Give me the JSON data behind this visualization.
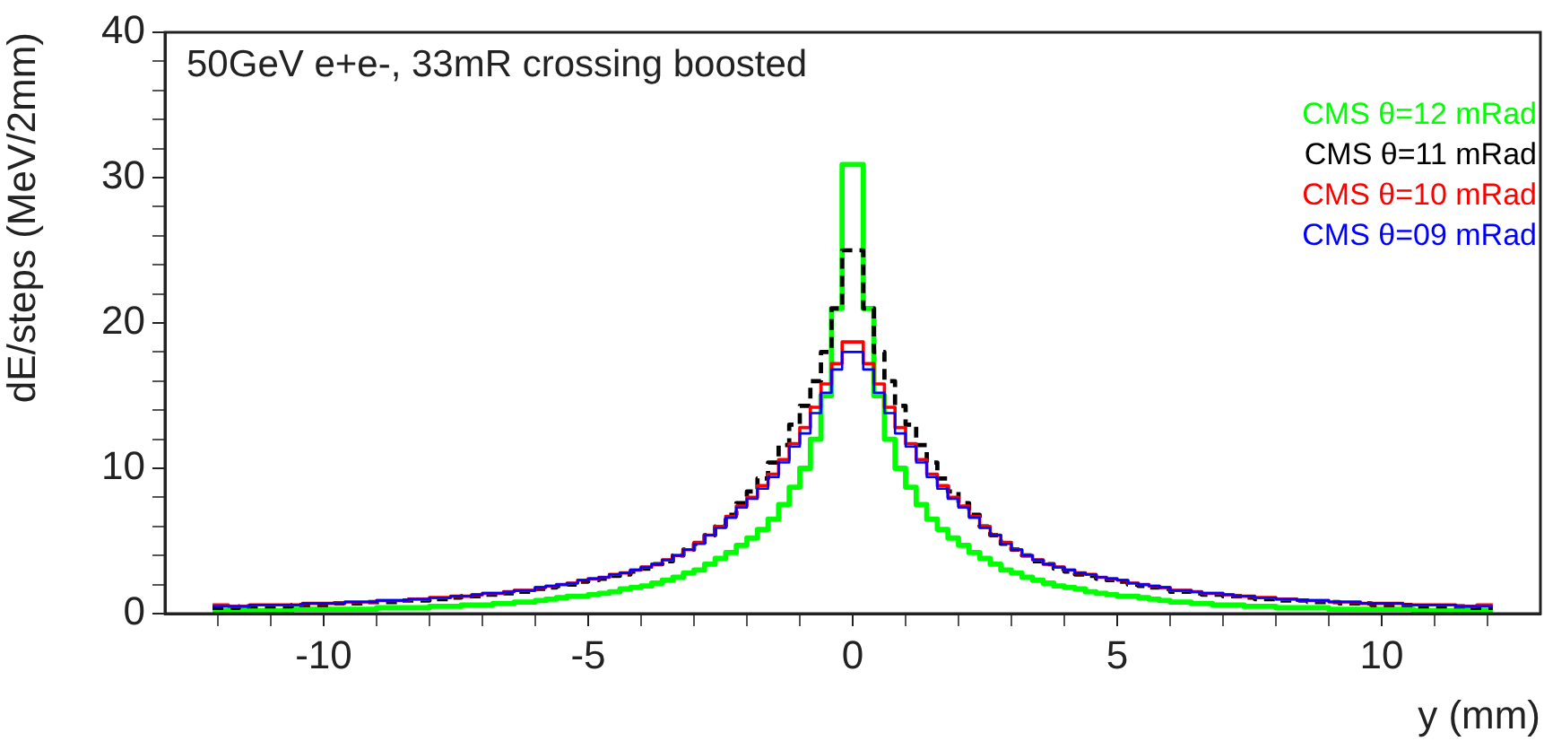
{
  "chart_data": {
    "type": "step",
    "title": "50GeV e+e-, 33mR crossing boosted",
    "xlabel": "y (mm)",
    "ylabel": "dE/steps (MeV/2mm)",
    "legend": "top right",
    "xlim": [
      -13,
      13
    ],
    "ylim": [
      0,
      40
    ],
    "xticks": [
      {
        "value": -12,
        "label": null
      },
      {
        "value": -11,
        "label": null
      },
      -10,
      {
        "value": -9,
        "label": null
      },
      {
        "value": -8,
        "label": null
      },
      {
        "value": -7,
        "label": null
      },
      {
        "value": -6,
        "label": null
      },
      -5,
      {
        "value": -4,
        "label": null
      },
      {
        "value": -3,
        "label": null
      },
      {
        "value": -2,
        "label": null
      },
      {
        "value": -1,
        "label": null
      },
      0,
      {
        "value": 1,
        "label": null
      },
      {
        "value": 2,
        "label": null
      },
      {
        "value": 3,
        "label": null
      },
      {
        "value": 4,
        "label": null
      },
      5,
      {
        "value": 6,
        "label": null
      },
      {
        "value": 7,
        "label": null
      },
      {
        "value": 8,
        "label": null
      },
      {
        "value": 9,
        "label": null
      },
      10,
      {
        "value": 11,
        "label": null
      },
      {
        "value": 12,
        "label": null
      }
    ],
    "yticks": [
      0,
      {
        "value": 2,
        "label": null
      },
      {
        "value": 4,
        "label": null
      },
      {
        "value": 6,
        "label": null
      },
      {
        "value": 8,
        "label": null
      },
      10,
      {
        "value": 12,
        "label": null
      },
      {
        "value": 14,
        "label": null
      },
      {
        "value": 16,
        "label": null
      },
      {
        "value": 18,
        "label": null
      },
      20,
      {
        "value": 22,
        "label": null
      },
      {
        "value": 24,
        "label": null
      },
      {
        "value": 26,
        "label": null
      },
      {
        "value": 28,
        "label": null
      },
      30,
      {
        "value": 32,
        "label": null
      },
      {
        "value": 34,
        "label": null
      },
      {
        "value": 36,
        "label": null
      },
      {
        "value": 38,
        "label": null
      },
      40
    ],
    "x": [
      -12.1,
      -11.9,
      -11.7,
      -11.5,
      -11.3,
      -11.1,
      -10.9,
      -10.7,
      -10.5,
      -10.3,
      -10.1,
      -9.9,
      -9.7,
      -9.5,
      -9.3,
      -9.1,
      -8.9,
      -8.7,
      -8.5,
      -8.3,
      -8.1,
      -7.9,
      -7.7,
      -7.5,
      -7.3,
      -7.1,
      -6.9,
      -6.7,
      -6.5,
      -6.3,
      -6.1,
      -5.9,
      -5.7,
      -5.5,
      -5.3,
      -5.1,
      -4.9,
      -4.7,
      -4.5,
      -4.3,
      -4.1,
      -3.9,
      -3.7,
      -3.5,
      -3.3,
      -3.1,
      -2.9,
      -2.7,
      -2.5,
      -2.3,
      -2.1,
      -1.9,
      -1.7,
      -1.5,
      -1.3,
      -1.1,
      -0.9,
      -0.7,
      -0.5,
      -0.3,
      -0.1,
      0.1,
      0.3,
      0.5,
      0.7,
      0.9,
      1.1,
      1.3,
      1.5,
      1.7,
      1.9,
      2.1,
      2.3,
      2.5,
      2.7,
      2.9,
      3.1,
      3.3,
      3.5,
      3.7,
      3.9,
      4.1,
      4.3,
      4.5,
      4.7,
      4.9,
      5.1,
      5.3,
      5.5,
      5.7,
      5.9,
      6.1,
      6.3,
      6.5,
      6.7,
      6.9,
      7.1,
      7.3,
      7.5,
      7.7,
      7.9,
      8.1,
      8.3,
      8.5,
      8.7,
      8.9,
      9.1,
      9.3,
      9.5,
      9.7,
      9.9,
      10.1,
      10.3,
      10.5,
      10.7,
      10.9,
      11.1,
      11.3,
      11.5,
      11.7,
      11.9,
      12.1
    ],
    "series": [
      {
        "name": "CMS θ=12 mRad",
        "color": "#00ff00",
        "values": [
          0.2,
          0.2,
          0.2,
          0.2,
          0.2,
          0.2,
          0.2,
          0.2,
          0.3,
          0.3,
          0.3,
          0.3,
          0.3,
          0.3,
          0.3,
          0.3,
          0.4,
          0.4,
          0.4,
          0.4,
          0.4,
          0.5,
          0.5,
          0.5,
          0.6,
          0.6,
          0.6,
          0.7,
          0.7,
          0.8,
          0.8,
          0.9,
          1.0,
          1.1,
          1.2,
          1.2,
          1.3,
          1.4,
          1.5,
          1.7,
          1.8,
          1.9,
          2.1,
          2.3,
          2.5,
          2.8,
          3.0,
          3.4,
          3.8,
          4.2,
          4.7,
          5.2,
          5.8,
          6.5,
          7.5,
          8.7,
          10.0,
          12.0,
          15.0,
          21.0,
          30.9,
          30.9,
          21.0,
          15.0,
          12.0,
          10.0,
          8.7,
          7.5,
          6.5,
          5.8,
          5.2,
          4.7,
          4.2,
          3.8,
          3.4,
          3.0,
          2.8,
          2.5,
          2.3,
          2.1,
          1.9,
          1.8,
          1.7,
          1.5,
          1.4,
          1.3,
          1.2,
          1.2,
          1.1,
          1.0,
          0.9,
          0.8,
          0.8,
          0.7,
          0.7,
          0.6,
          0.6,
          0.6,
          0.5,
          0.5,
          0.5,
          0.4,
          0.4,
          0.4,
          0.4,
          0.4,
          0.3,
          0.3,
          0.3,
          0.3,
          0.3,
          0.3,
          0.3,
          0.3,
          0.2,
          0.2,
          0.2,
          0.2,
          0.2,
          0.2,
          0.2,
          0.2
        ]
      },
      {
        "name": "CMS θ=11 mRad",
        "color": "#000000",
        "line_style": "dashed",
        "values": [
          0.4,
          0.4,
          0.4,
          0.5,
          0.5,
          0.5,
          0.5,
          0.5,
          0.6,
          0.6,
          0.6,
          0.6,
          0.7,
          0.7,
          0.7,
          0.8,
          0.8,
          0.8,
          0.9,
          0.9,
          0.9,
          1.0,
          1.0,
          1.1,
          1.2,
          1.2,
          1.3,
          1.3,
          1.4,
          1.5,
          1.5,
          1.7,
          1.8,
          1.9,
          2.0,
          2.2,
          2.3,
          2.4,
          2.6,
          2.7,
          2.9,
          3.1,
          3.4,
          3.6,
          4.0,
          4.4,
          4.8,
          5.4,
          6.0,
          6.8,
          7.6,
          8.4,
          9.3,
          10.4,
          11.6,
          13.0,
          14.3,
          16.0,
          18.0,
          21.0,
          25.0,
          25.0,
          21.0,
          18.0,
          16.0,
          14.3,
          13.0,
          11.6,
          10.4,
          9.3,
          8.4,
          7.6,
          6.8,
          6.0,
          5.4,
          4.8,
          4.4,
          4.0,
          3.6,
          3.4,
          3.1,
          2.9,
          2.7,
          2.6,
          2.4,
          2.3,
          2.2,
          2.0,
          1.9,
          1.8,
          1.7,
          1.5,
          1.5,
          1.4,
          1.3,
          1.3,
          1.2,
          1.2,
          1.1,
          1.0,
          1.0,
          0.9,
          0.9,
          0.9,
          0.8,
          0.8,
          0.8,
          0.7,
          0.7,
          0.7,
          0.6,
          0.6,
          0.6,
          0.6,
          0.5,
          0.5,
          0.5,
          0.5,
          0.5,
          0.4,
          0.4,
          0.4
        ]
      },
      {
        "name": "CMS θ=10 mRad",
        "color": "#ff0000",
        "values": [
          0.6,
          0.6,
          0.5,
          0.5,
          0.6,
          0.6,
          0.6,
          0.6,
          0.6,
          0.7,
          0.7,
          0.7,
          0.7,
          0.8,
          0.8,
          0.8,
          0.9,
          0.9,
          0.9,
          1.0,
          1.0,
          1.1,
          1.1,
          1.2,
          1.2,
          1.3,
          1.4,
          1.4,
          1.5,
          1.6,
          1.6,
          1.8,
          1.9,
          2.0,
          2.1,
          2.3,
          2.4,
          2.5,
          2.7,
          2.8,
          3.0,
          3.2,
          3.4,
          3.7,
          4.0,
          4.4,
          4.9,
          5.4,
          6.0,
          6.7,
          7.4,
          8.0,
          8.8,
          9.6,
          10.6,
          11.7,
          12.8,
          14.2,
          15.8,
          17.2,
          18.7,
          18.7,
          17.2,
          15.8,
          14.2,
          12.8,
          11.7,
          10.6,
          9.6,
          8.8,
          8.0,
          7.4,
          6.7,
          6.0,
          5.4,
          4.9,
          4.4,
          4.0,
          3.7,
          3.4,
          3.2,
          3.0,
          2.8,
          2.7,
          2.5,
          2.4,
          2.3,
          2.1,
          2.0,
          1.9,
          1.8,
          1.6,
          1.6,
          1.5,
          1.4,
          1.4,
          1.3,
          1.2,
          1.2,
          1.1,
          1.1,
          1.0,
          1.0,
          0.9,
          0.9,
          0.9,
          0.8,
          0.8,
          0.8,
          0.7,
          0.7,
          0.7,
          0.7,
          0.6,
          0.6,
          0.6,
          0.6,
          0.6,
          0.5,
          0.5,
          0.6,
          0.6
        ]
      },
      {
        "name": "CMS θ=09 mRad",
        "color": "#0000ff",
        "values": [
          0.5,
          0.5,
          0.5,
          0.5,
          0.6,
          0.6,
          0.6,
          0.6,
          0.6,
          0.7,
          0.7,
          0.7,
          0.7,
          0.8,
          0.8,
          0.8,
          0.9,
          0.9,
          0.9,
          1.0,
          1.0,
          1.1,
          1.1,
          1.2,
          1.2,
          1.3,
          1.4,
          1.4,
          1.5,
          1.6,
          1.6,
          1.8,
          1.9,
          2.0,
          2.1,
          2.3,
          2.4,
          2.5,
          2.7,
          2.8,
          3.0,
          3.2,
          3.4,
          3.7,
          4.0,
          4.4,
          4.8,
          5.4,
          5.9,
          6.6,
          7.3,
          7.9,
          8.6,
          9.4,
          10.4,
          11.5,
          12.4,
          13.8,
          15.2,
          16.8,
          18.0,
          18.0,
          16.8,
          15.2,
          13.8,
          12.4,
          11.5,
          10.4,
          9.4,
          8.6,
          7.9,
          7.3,
          6.6,
          5.9,
          5.4,
          4.8,
          4.4,
          4.0,
          3.7,
          3.4,
          3.2,
          3.0,
          2.8,
          2.7,
          2.5,
          2.4,
          2.3,
          2.1,
          2.0,
          1.9,
          1.8,
          1.6,
          1.6,
          1.5,
          1.4,
          1.4,
          1.3,
          1.2,
          1.2,
          1.1,
          1.1,
          1.0,
          1.0,
          0.9,
          0.9,
          0.9,
          0.8,
          0.8,
          0.8,
          0.7,
          0.7,
          0.7,
          0.7,
          0.6,
          0.6,
          0.6,
          0.6,
          0.6,
          0.5,
          0.5,
          0.5,
          0.5
        ]
      }
    ]
  }
}
